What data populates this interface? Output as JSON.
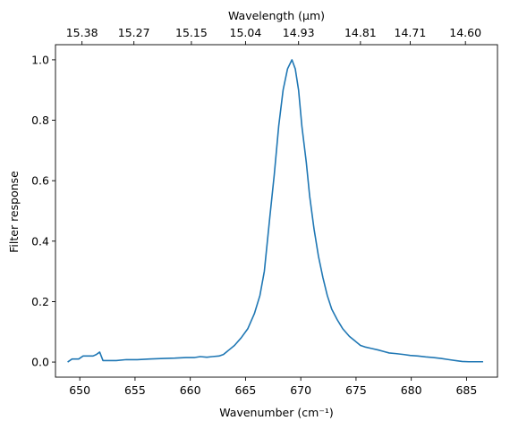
{
  "chart_data": {
    "type": "line",
    "xlabel": "Wavenumber (cm⁻¹)",
    "ylabel": "Filter response",
    "x2label": "Wavelength (μm)",
    "xlim": [
      647.8,
      687.8
    ],
    "ylim": [
      -0.05,
      1.05
    ],
    "xticks": [
      650,
      655,
      660,
      665,
      670,
      675,
      680,
      685
    ],
    "yticks": [
      0.0,
      0.2,
      0.4,
      0.6,
      0.8,
      1.0
    ],
    "ytick_labels": [
      "0.0",
      "0.2",
      "0.4",
      "0.6",
      "0.8",
      "1.0"
    ],
    "x2ticks_at": [
      650.2,
      654.9,
      660.1,
      665.0,
      669.8,
      675.4,
      679.9,
      684.9
    ],
    "x2tick_labels": [
      "15.38",
      "15.27",
      "15.15",
      "15.04",
      "14.93",
      "14.81",
      "14.71",
      "14.60"
    ],
    "grid": false,
    "line_color": "#1f77b4",
    "series": [
      {
        "x": [
          648.9,
          649.3,
          649.9,
          650.3,
          650.7,
          651.2,
          651.5,
          651.8,
          652.1,
          652.6,
          653.3,
          654.2,
          655.2,
          656.3,
          657.6,
          658.6,
          659.6,
          660.4,
          660.9,
          661.5,
          662.0,
          662.6,
          663.0,
          663.5,
          664.0,
          664.6,
          665.2,
          665.8,
          666.3,
          666.7,
          667.2,
          667.6,
          668.0,
          668.4,
          668.8,
          669.2,
          669.5,
          669.8,
          670.1,
          670.5,
          670.8,
          671.2,
          671.6,
          672.0,
          672.4,
          672.8,
          673.3,
          673.8,
          674.4,
          674.9,
          675.4,
          675.8,
          676.4,
          677.0,
          677.5,
          678.0,
          678.6,
          679.3,
          679.9,
          680.6,
          681.3,
          682.0,
          682.7,
          683.4,
          684.0,
          684.6,
          685.2,
          685.9,
          686.5
        ],
        "y": [
          0.0,
          0.01,
          0.01,
          0.02,
          0.02,
          0.02,
          0.025,
          0.033,
          0.005,
          0.005,
          0.005,
          0.008,
          0.008,
          0.01,
          0.012,
          0.013,
          0.015,
          0.015,
          0.018,
          0.016,
          0.018,
          0.02,
          0.025,
          0.04,
          0.055,
          0.08,
          0.11,
          0.16,
          0.22,
          0.3,
          0.48,
          0.62,
          0.78,
          0.9,
          0.97,
          1.0,
          0.97,
          0.9,
          0.78,
          0.66,
          0.55,
          0.44,
          0.35,
          0.28,
          0.22,
          0.175,
          0.14,
          0.11,
          0.085,
          0.07,
          0.055,
          0.05,
          0.045,
          0.04,
          0.035,
          0.03,
          0.028,
          0.025,
          0.022,
          0.02,
          0.017,
          0.015,
          0.012,
          0.008,
          0.005,
          0.002,
          0.001,
          0.001,
          0.001
        ]
      }
    ]
  }
}
